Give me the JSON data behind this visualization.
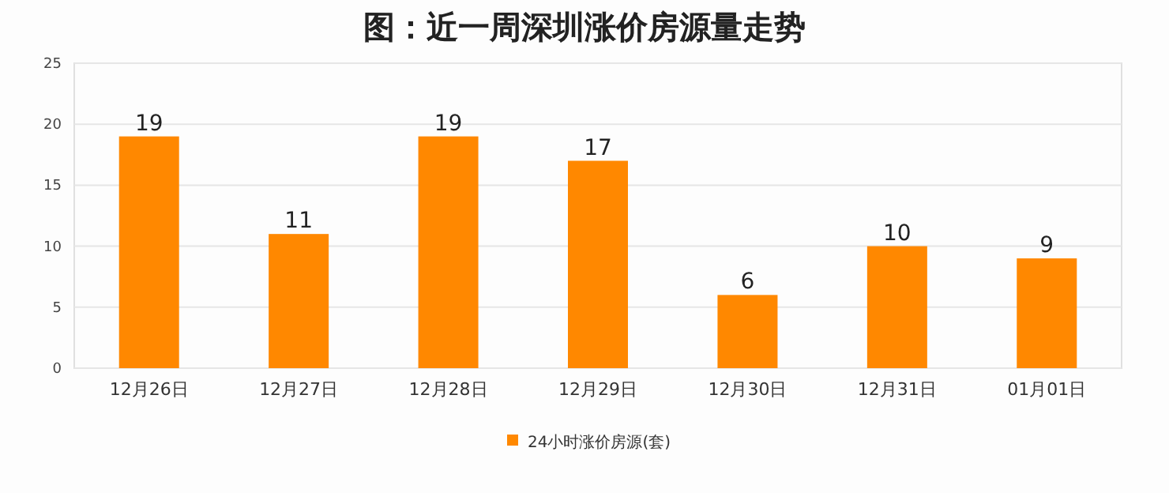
{
  "chart_data": {
    "type": "bar",
    "title": "图：近一周深圳涨价房源量走势",
    "categories": [
      "12月26日",
      "12月27日",
      "12月28日",
      "12月29日",
      "12月30日",
      "12月31日",
      "01月01日"
    ],
    "series": [
      {
        "name": "24小时涨价房源(套)",
        "color": "#ff8800",
        "values": [
          19,
          11,
          19,
          17,
          6,
          10,
          9
        ]
      }
    ],
    "ylim": [
      0,
      25
    ],
    "yticks": [
      0,
      5,
      10,
      15,
      20,
      25
    ],
    "grid": "y",
    "data_labels": true,
    "legend": "bottom"
  }
}
